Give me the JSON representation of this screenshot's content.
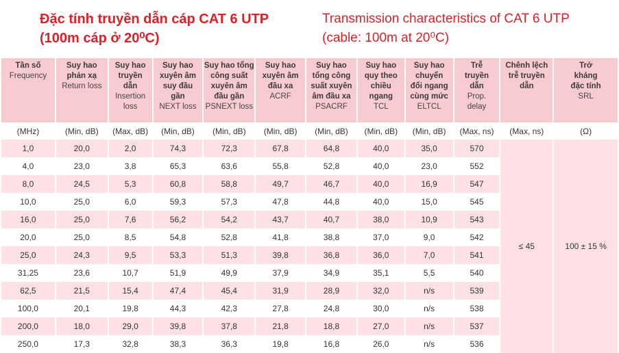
{
  "titles": {
    "vi": [
      "Đặc tính truyền dẫn  cáp CAT 6 UTP",
      "(100m cáp ở 20⁰C)"
    ],
    "en": [
      "Transmission characteristics of CAT 6 UTP",
      "(cable: 100m at 20⁰C)"
    ]
  },
  "table": {
    "columns": [
      {
        "vi": [
          "Tần số"
        ],
        "en": [
          "Frequency"
        ]
      },
      {
        "vi": [
          "Suy hao",
          "phản xạ"
        ],
        "en": [
          "Return loss"
        ]
      },
      {
        "vi": [
          "Suy hao",
          "truyền",
          "dẫn"
        ],
        "en": [
          "Insertion",
          "loss"
        ]
      },
      {
        "vi": [
          "Suy hao",
          "xuyên âm",
          "suy đầu",
          "gần"
        ],
        "en": [
          "NEXT loss"
        ]
      },
      {
        "vi": [
          "Suy hao tổng",
          "công suất",
          "xuyên âm",
          "đầu gần"
        ],
        "en": [
          "PSNEXT loss"
        ]
      },
      {
        "vi": [
          "Suy hao",
          "xuyên âm",
          "đầu xa"
        ],
        "en": [
          "ACRF"
        ]
      },
      {
        "vi": [
          "Suy hao",
          "tổng công",
          "suất xuyên",
          "âm đầu xa"
        ],
        "en": [
          "PSACRF"
        ]
      },
      {
        "vi": [
          "Suy hao",
          "quy theo",
          "chiều",
          "ngang"
        ],
        "en": [
          "TCL"
        ]
      },
      {
        "vi": [
          "Suy hao",
          "chuyển",
          "đổi ngang",
          "cùng mức"
        ],
        "en": [
          "ELTCL"
        ]
      },
      {
        "vi": [
          "Trễ",
          "truyền",
          "dẫn"
        ],
        "en": [
          "Prop.",
          "delay"
        ]
      },
      {
        "vi": [
          "Chênh lệch",
          "trễ truyền",
          "dẫn"
        ],
        "en": []
      },
      {
        "vi": [
          "Trở",
          "kháng",
          "đặc tính"
        ],
        "en": [
          "SRL"
        ]
      }
    ],
    "units": [
      "(MHz)",
      "(Min, dB)",
      "(Max, dB)",
      "(Min, dB)",
      "(Min, dB)",
      "(Min, dB)",
      "(Min, dB)",
      "(Min, dB)",
      "(Min, dB)",
      "(Max, ns)",
      "(Max, ns)",
      "(Ω)"
    ],
    "rows": [
      [
        "1,0",
        "20,0",
        "2,0",
        "74,3",
        "72,3",
        "67,8",
        "64,8",
        "40,0",
        "35,0",
        "570"
      ],
      [
        "4,0",
        "23,0",
        "3,8",
        "65,3",
        "63,6",
        "55,8",
        "52,8",
        "40,0",
        "23,0",
        "552"
      ],
      [
        "8,0",
        "24,5",
        "5,3",
        "60,8",
        "58,8",
        "49,7",
        "46,7",
        "40,0",
        "16,9",
        "547"
      ],
      [
        "10,0",
        "25,0",
        "6,0",
        "59,3",
        "57,3",
        "47,8",
        "44,8",
        "40,0",
        "15,0",
        "545"
      ],
      [
        "16,0",
        "25,0",
        "7,6",
        "56,2",
        "54,2",
        "43,7",
        "40,7",
        "38,0",
        "10,9",
        "543"
      ],
      [
        "20,0",
        "25,0",
        "8,5",
        "54,8",
        "52,8",
        "41,8",
        "38,8",
        "37,0",
        "9,0",
        "542"
      ],
      [
        "25,0",
        "24,3",
        "9,5",
        "53,3",
        "51,3",
        "39,8",
        "36,8",
        "36,0",
        "7,0",
        "541"
      ],
      [
        "31,25",
        "23,6",
        "10,7",
        "51,9",
        "49,9",
        "37,9",
        "34,9",
        "35,1",
        "5,5",
        "540"
      ],
      [
        "62,5",
        "21,5",
        "15,4",
        "47,4",
        "45,4",
        "31,9",
        "28,9",
        "32,0",
        "n/s",
        "539"
      ],
      [
        "100,0",
        "20,1",
        "19,8",
        "44,3",
        "42,3",
        "27,8",
        "24,8",
        "30,0",
        "n/s",
        "538"
      ],
      [
        "200,0",
        "18,0",
        "29,0",
        "39,8",
        "37,8",
        "21,8",
        "18,8",
        "27,0",
        "n/s",
        "537"
      ],
      [
        "250,0",
        "17,3",
        "32,8",
        "38,3",
        "36,3",
        "19,8",
        "16,8",
        "26,0",
        "n/s",
        "536"
      ]
    ],
    "merged": [
      "≤ 45",
      "100 ± 15 %"
    ]
  }
}
